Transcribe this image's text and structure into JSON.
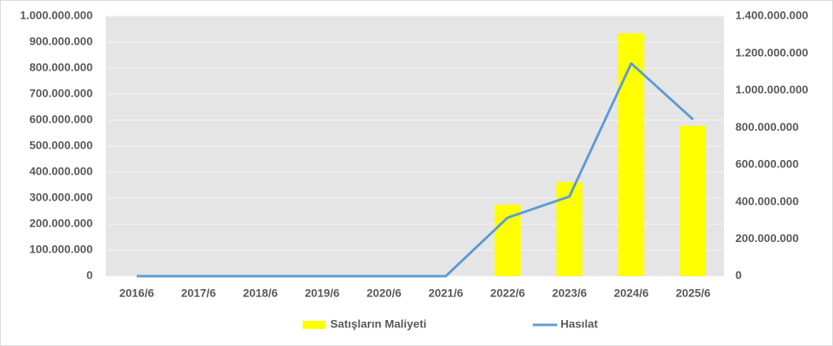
{
  "chart_data": {
    "type": "combo",
    "categories": [
      "2016/6",
      "2017/6",
      "2018/6",
      "2019/6",
      "2020/6",
      "2021/6",
      "2022/6",
      "2023/6",
      "2024/6",
      "2025/6"
    ],
    "series": [
      {
        "name": "Satışların Maliyeti",
        "type": "bar",
        "color": "#ffff00",
        "axis": "y",
        "values": [
          0,
          0,
          0,
          0,
          0,
          0,
          275000000,
          362000000,
          934000000,
          578000000
        ]
      },
      {
        "name": "Hasılat",
        "type": "line",
        "color": "#5b9bd5",
        "axis": "y2",
        "values": [
          0,
          0,
          0,
          0,
          0,
          0,
          315000000,
          429000000,
          1146000000,
          844000000
        ]
      }
    ],
    "ylim": [
      0,
      1000000000
    ],
    "yticks": [
      0,
      {
        "value": 100000000,
        "label": "100.000.000"
      },
      {
        "value": 200000000,
        "label": "200.000.000"
      },
      {
        "value": 300000000,
        "label": "300.000.000"
      },
      {
        "value": 400000000,
        "label": "400.000.000"
      },
      {
        "value": 500000000,
        "label": "500.000.000"
      },
      {
        "value": 600000000,
        "label": "600.000.000"
      },
      {
        "value": 700000000,
        "label": "700.000.000"
      },
      {
        "value": 800000000,
        "label": "800.000.000"
      },
      {
        "value": 900000000,
        "label": "900.000.000"
      },
      {
        "value": 1000000000,
        "label": "1.000.000.000"
      }
    ],
    "y2lim": [
      0,
      1400000000
    ],
    "y2ticks": [
      0,
      {
        "value": 200000000,
        "label": "200.000.000"
      },
      {
        "value": 400000000,
        "label": "400.000.000"
      },
      {
        "value": 600000000,
        "label": "600.000.000"
      },
      {
        "value": 800000000,
        "label": "800.000.000"
      },
      {
        "value": 1000000000,
        "label": "1.000.000.000"
      },
      {
        "value": 1200000000,
        "label": "1.200.000.000"
      },
      {
        "value": 1400000000,
        "label": "1.400.000.000"
      }
    ],
    "grid": true,
    "legend": "bottom"
  }
}
